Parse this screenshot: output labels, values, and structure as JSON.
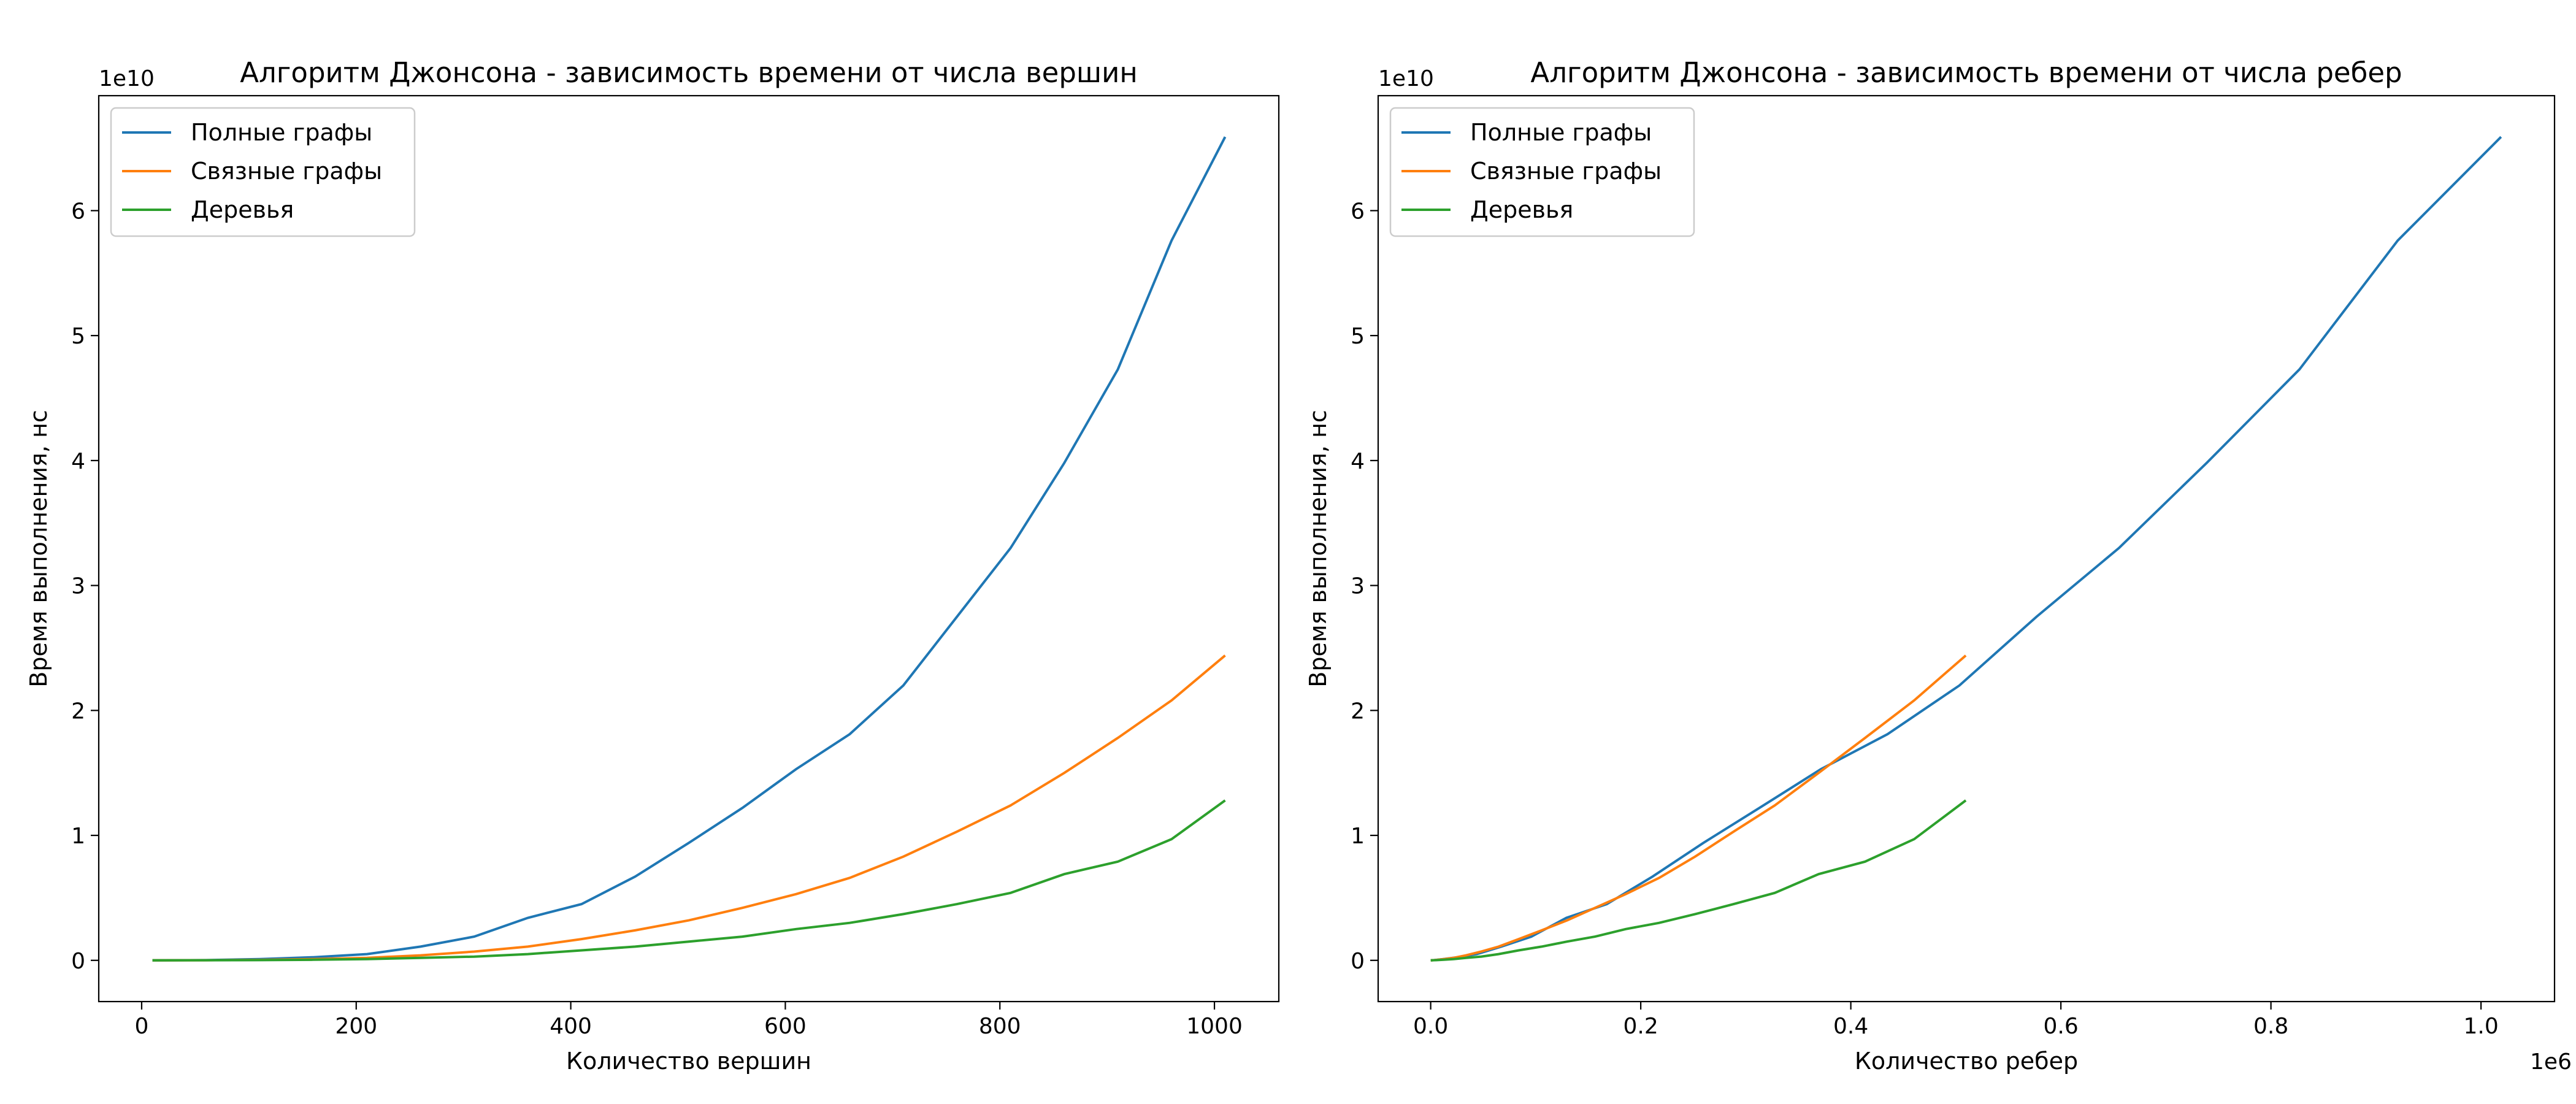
{
  "chart_data": [
    {
      "type": "line",
      "title": "Алгоритм Джонсона - зависимость времени от числа вершин",
      "xlabel": "Количество вершин",
      "ylabel": "Время выполнения, нс",
      "y_offset_label": "1e10",
      "x": [
        10,
        60,
        110,
        160,
        210,
        260,
        310,
        360,
        410,
        460,
        510,
        560,
        610,
        660,
        710,
        760,
        810,
        860,
        910,
        960,
        1010
      ],
      "series": [
        {
          "name": "Полные графы",
          "color": "#1f77b4",
          "values": [
            0,
            0.002,
            0.01,
            0.025,
            0.05,
            0.11,
            0.19,
            0.34,
            0.45,
            0.67,
            0.94,
            1.22,
            1.53,
            1.81,
            2.2,
            2.75,
            3.3,
            3.98,
            4.73,
            5.76,
            6.59
          ]
        },
        {
          "name": "Связные графы",
          "color": "#ff7f0e",
          "values": [
            0,
            0.001,
            0.004,
            0.01,
            0.02,
            0.04,
            0.07,
            0.11,
            0.17,
            0.24,
            0.32,
            0.42,
            0.53,
            0.66,
            0.83,
            1.03,
            1.24,
            1.5,
            1.78,
            2.08,
            2.44
          ]
        },
        {
          "name": "Деревья",
          "color": "#2ca02c",
          "values": [
            0,
            0.001,
            0.002,
            0.005,
            0.01,
            0.02,
            0.03,
            0.05,
            0.08,
            0.11,
            0.15,
            0.19,
            0.25,
            0.3,
            0.37,
            0.45,
            0.54,
            0.69,
            0.79,
            0.97,
            1.28
          ]
        }
      ],
      "xlim": [
        -40,
        1060
      ],
      "xticks": [
        0,
        200,
        400,
        600,
        800,
        1000
      ],
      "ylim": [
        -0.33,
        6.92
      ],
      "yticks": [
        0,
        1,
        2,
        3,
        4,
        5,
        6
      ],
      "legend": "upper left"
    },
    {
      "type": "line",
      "title": "Алгоритм Джонсона - зависимость времени от числа ребер",
      "xlabel": "Количество ребер",
      "ylabel": "Время выполнения, нс",
      "y_offset_label": "1e10",
      "x_offset_label": "1e6",
      "series": [
        {
          "name": "Полные графы",
          "color": "#1f77b4",
          "x": [
            9e-05,
            0.00354,
            0.01199,
            0.02544,
            0.04389,
            0.06734,
            0.09579,
            0.12924,
            0.16769,
            0.21114,
            0.25959,
            0.31304,
            0.37149,
            0.43494,
            0.50339,
            0.57684,
            0.65529,
            0.73874,
            0.82719,
            0.92064,
            1.01909
          ],
          "values": [
            0,
            0.002,
            0.01,
            0.025,
            0.05,
            0.11,
            0.19,
            0.34,
            0.45,
            0.67,
            0.94,
            1.22,
            1.53,
            1.81,
            2.2,
            2.75,
            3.3,
            3.98,
            4.73,
            5.76,
            6.59
          ]
        },
        {
          "name": "Связные графы",
          "color": "#ff7f0e",
          "x": [
            4.5e-05,
            0.00177,
            0.006,
            0.0127,
            0.0219,
            0.0337,
            0.0479,
            0.0646,
            0.0838,
            0.1056,
            0.1298,
            0.1565,
            0.1857,
            0.2175,
            0.2517,
            0.2884,
            0.3276,
            0.3694,
            0.4136,
            0.4603,
            0.5095
          ],
          "values": [
            0,
            0.001,
            0.004,
            0.01,
            0.02,
            0.04,
            0.07,
            0.11,
            0.17,
            0.24,
            0.32,
            0.42,
            0.53,
            0.66,
            0.83,
            1.03,
            1.24,
            1.5,
            1.78,
            2.08,
            2.44
          ]
        },
        {
          "name": "Деревья",
          "color": "#2ca02c",
          "x": [
            4.5e-05,
            0.00177,
            0.006,
            0.0127,
            0.0219,
            0.0337,
            0.0479,
            0.0646,
            0.0838,
            0.1056,
            0.1298,
            0.1565,
            0.1857,
            0.2175,
            0.2517,
            0.2884,
            0.3276,
            0.3694,
            0.4136,
            0.4603,
            0.5095
          ],
          "values": [
            0,
            0.001,
            0.002,
            0.005,
            0.01,
            0.02,
            0.03,
            0.05,
            0.08,
            0.11,
            0.15,
            0.19,
            0.25,
            0.3,
            0.37,
            0.45,
            0.54,
            0.69,
            0.79,
            0.97,
            1.28
          ]
        }
      ],
      "xlim": [
        -0.05,
        1.07
      ],
      "xticks": [
        {
          "value": 0,
          "label": "0.0"
        },
        {
          "value": 0.2,
          "label": "0.2"
        },
        {
          "value": 0.4,
          "label": "0.4"
        },
        {
          "value": 0.6,
          "label": "0.6"
        },
        {
          "value": 0.8,
          "label": "0.8"
        },
        {
          "value": 1,
          "label": "1.0"
        }
      ],
      "ylim": [
        -0.33,
        6.92
      ],
      "yticks": [
        0,
        1,
        2,
        3,
        4,
        5,
        6
      ],
      "legend": "upper left"
    }
  ]
}
